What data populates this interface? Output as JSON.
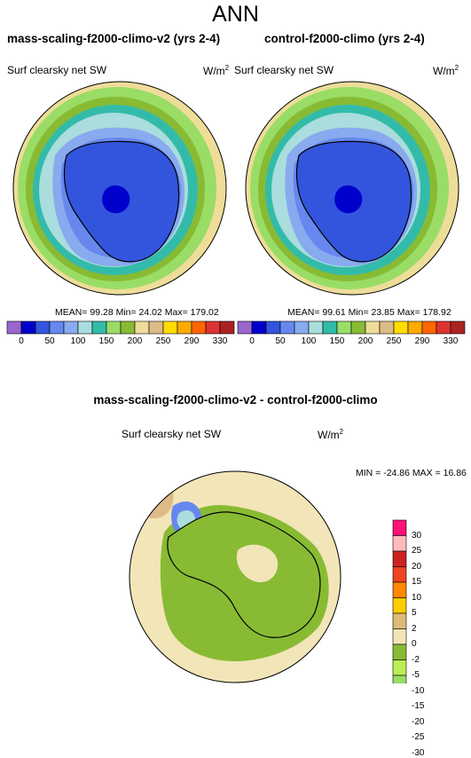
{
  "title": "ANN",
  "panels": [
    {
      "title": "mass-scaling-f2000-climo-v2 (yrs 2-4)",
      "variable": "Surf clearsky net SW",
      "units": "W/m",
      "units_exp": "2",
      "stats": "MEAN= 99.28  Min= 24.02  Max= 179.02"
    },
    {
      "title": "control-f2000-climo (yrs 2-4)",
      "variable": "Surf clearsky net SW",
      "units": "W/m",
      "units_exp": "2",
      "stats": "MEAN= 99.61  Min= 23.85  Max= 178.92"
    }
  ],
  "colorbar": {
    "labels": [
      "0",
      "50",
      "100",
      "150",
      "200",
      "250",
      "290",
      "330"
    ],
    "ticks": [
      "0",
      "50",
      "100",
      "150",
      "200",
      "250",
      "290",
      "330"
    ],
    "colors": [
      "#9966cc",
      "#0000cc",
      "#3355dd",
      "#6688ee",
      "#88aaee",
      "#aadddd",
      "#33bbaa",
      "#99dd66",
      "#88bb33",
      "#eedd99",
      "#ddbb88",
      "#ffdd00",
      "#ffaa00",
      "#ff6600",
      "#dd3333",
      "#aa2222",
      "#ffbbbb",
      "#ff1177"
    ]
  },
  "diff": {
    "title": "mass-scaling-f2000-climo-v2 - control-f2000-climo",
    "variable": "Surf clearsky net SW",
    "units": "W/m",
    "units_exp": "2",
    "minmax": "MIN = -24.86 MAX =  16.86",
    "colorbar_labels": [
      "30",
      "25",
      "20",
      "15",
      "10",
      "5",
      "2",
      "0",
      "-2",
      "-5",
      "-10",
      "-15",
      "-20",
      "-25",
      "-30"
    ],
    "colorbar_colors": [
      "#ff1177",
      "#ffbbbb",
      "#cc2222",
      "#ee4422",
      "#ff8800",
      "#ffcc00",
      "#ddbb77",
      "#f2e5b8",
      "#88bb33",
      "#bbee55",
      "#99dd66",
      "#33bbaa",
      "#aadddd",
      "#6688ee",
      "#3355dd",
      "#0000cc",
      "#9966cc"
    ]
  }
}
